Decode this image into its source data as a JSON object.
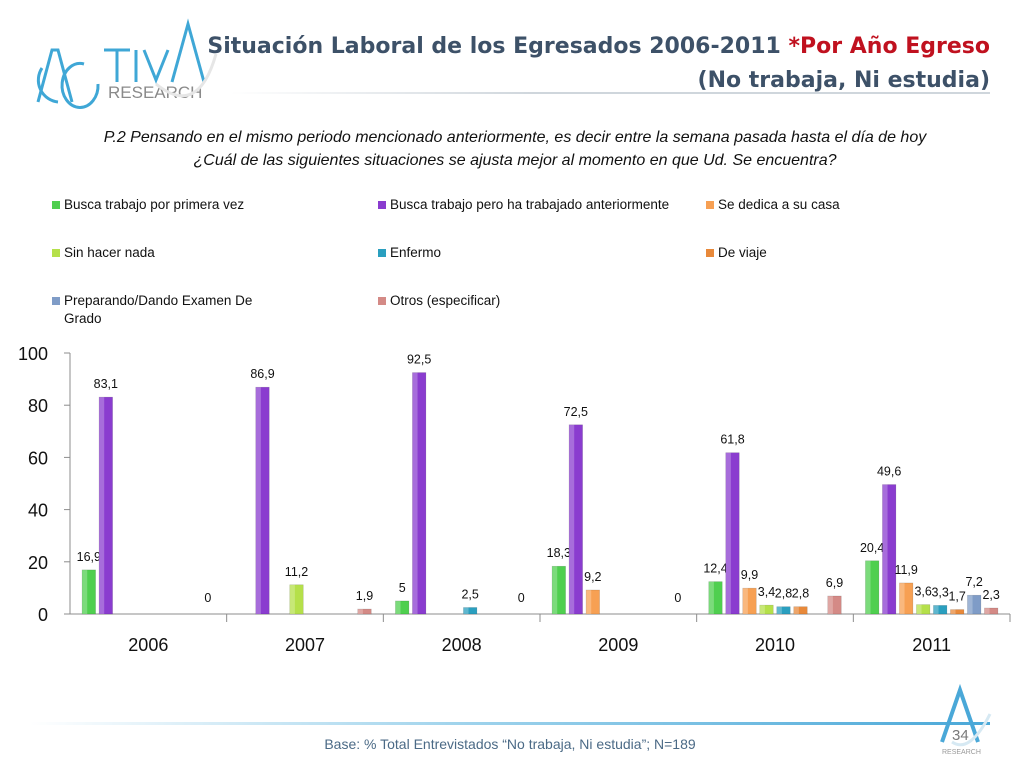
{
  "brand": {
    "logo_main": "ACTIVA",
    "logo_sub": "RESEARCH"
  },
  "title": {
    "line1": "Situación Laboral de los Egresados 2006-2011",
    "line1_highlight": "*Por Año Egreso",
    "line2": "(No trabaja, Ni estudia)"
  },
  "question": {
    "line1": "P.2  Pensando en el mismo periodo mencionado anteriormente, es decir entre la semana pasada hasta el día de hoy",
    "line2": "¿Cuál de las siguientes situaciones se ajusta mejor al momento en que Ud. Se encuentra?"
  },
  "footer": {
    "note": "Base: % Total Entrevistados “No trabaja, Ni estudia”; N=189",
    "page": "34"
  },
  "chart_data": {
    "type": "bar",
    "categories": [
      "2006",
      "2007",
      "2008",
      "2009",
      "2010",
      "2011"
    ],
    "ylim": [
      0,
      100
    ],
    "yticks": [
      0,
      20,
      40,
      60,
      80,
      100
    ],
    "legend_position": "top",
    "series": [
      {
        "name": "Busca trabajo por primera vez",
        "color": "#4fcf4f",
        "values": [
          16.9,
          null,
          5,
          18.3,
          12.4,
          20.4
        ],
        "labels": [
          "16,9",
          "",
          "5",
          "18,3",
          "12,4",
          "20,4"
        ]
      },
      {
        "name": "Busca trabajo pero ha trabajado anteriormente",
        "color": "#8a3ccf",
        "values": [
          83.1,
          86.9,
          92.5,
          72.5,
          61.8,
          49.6
        ],
        "labels": [
          "83,1",
          "86,9",
          "92,5",
          "72,5",
          "61,8",
          "49,6"
        ]
      },
      {
        "name": "Se dedica a su casa",
        "color": "#f7a053",
        "values": [
          null,
          null,
          null,
          9.2,
          9.9,
          11.9
        ],
        "labels": [
          "",
          "",
          "",
          "9,2",
          "9,9",
          "11,9"
        ]
      },
      {
        "name": "Sin hacer nada",
        "color": "#b5e04a",
        "values": [
          null,
          11.2,
          null,
          null,
          3.4,
          3.6
        ],
        "labels": [
          "",
          "11,2",
          "",
          "",
          "3,4",
          "3,6"
        ]
      },
      {
        "name": "Enfermo",
        "color": "#2a9fbf",
        "values": [
          null,
          null,
          2.5,
          null,
          2.8,
          3.3
        ],
        "labels": [
          "",
          "",
          "2,5",
          "",
          "2,8",
          "3,3"
        ]
      },
      {
        "name": "De viaje",
        "color": "#e8893a",
        "values": [
          null,
          null,
          null,
          null,
          2.8,
          1.7
        ],
        "labels": [
          "",
          "",
          "",
          "",
          "2,8",
          "1,7"
        ]
      },
      {
        "name": "Preparando/Dando Examen De Grado",
        "color": "#7f9cc7",
        "values": [
          null,
          null,
          null,
          null,
          null,
          7.2
        ],
        "labels": [
          "",
          "",
          "",
          "",
          "",
          "7,2"
        ]
      },
      {
        "name": "Otros (especificar)",
        "color": "#d48a86",
        "values": [
          0,
          1.9,
          0,
          0,
          6.9,
          2.3
        ],
        "labels": [
          "0",
          "1,9",
          "0",
          "0",
          "6,9",
          "2,3"
        ]
      }
    ]
  }
}
